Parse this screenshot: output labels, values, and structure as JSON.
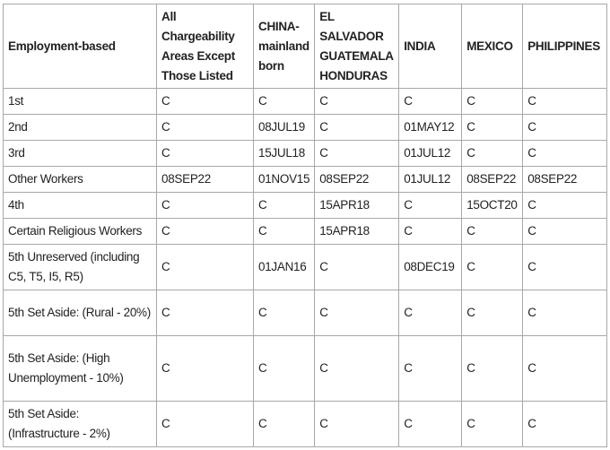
{
  "headers": [
    "Employment-based",
    "All Chargeability Areas Except Those Listed",
    "CHINA-mainland born",
    "EL SALVADOR GUATEMALA HONDURAS",
    "INDIA",
    "MEXICO",
    "PHILIPPINES"
  ],
  "rows": [
    [
      "1st",
      "C",
      "C",
      "C",
      "C",
      "C",
      "C"
    ],
    [
      "2nd",
      "C",
      "08JUL19",
      "C",
      "01MAY12",
      "C",
      "C"
    ],
    [
      "3rd",
      "C",
      "15JUL18",
      "C",
      "01JUL12",
      "C",
      "C"
    ],
    [
      "Other Workers",
      "08SEP22",
      "01NOV15",
      "08SEP22",
      "01JUL12",
      "08SEP22",
      "08SEP22"
    ],
    [
      "4th",
      "C",
      "C",
      "15APR18",
      "C",
      "15OCT20",
      "C"
    ],
    [
      "Certain Religious Workers",
      "C",
      "C",
      "15APR18",
      "C",
      "C",
      "C"
    ],
    [
      "5th Unreserved (including C5, T5, I5, R5)",
      "C",
      "01JAN16",
      "C",
      "08DEC19",
      "C",
      "C"
    ],
    [
      "5th Set Aside: (Rural - 20%)",
      "C",
      "C",
      "C",
      "C",
      "C",
      "C"
    ],
    [
      "5th Set Aside: (High Unemployment - 10%)",
      "C",
      "C",
      "C",
      "C",
      "C",
      "C"
    ],
    [
      "5th Set Aside: (Infrastructure - 2%)",
      "C",
      "C",
      "C",
      "C",
      "C",
      "C"
    ]
  ]
}
